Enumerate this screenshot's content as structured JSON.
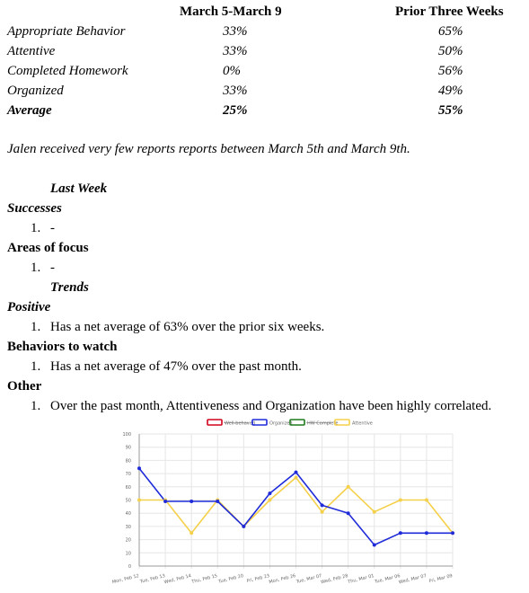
{
  "table": {
    "headers": [
      "March 5-March 9",
      "Prior Three Weeks"
    ],
    "rows": [
      {
        "label": "Appropriate Behavior",
        "current": "33%",
        "prior": "65%"
      },
      {
        "label": "Attentive",
        "current": "33%",
        "prior": "50%"
      },
      {
        "label": "Completed Homework",
        "current": "0%",
        "prior": "56%"
      },
      {
        "label": "Organized",
        "current": "33%",
        "prior": "49%"
      },
      {
        "label": "Average",
        "current": "25%",
        "prior": "55%"
      }
    ]
  },
  "note": "Jalen received very few reports reports between March 5th and March 9th.",
  "last_week": {
    "title": "Last Week",
    "successes": {
      "heading": "Successes",
      "items": [
        "-"
      ]
    },
    "focus": {
      "heading": "Areas of focus",
      "items": [
        "-"
      ]
    }
  },
  "trends": {
    "title": "Trends",
    "positive": {
      "heading": "Positive",
      "items": [
        "Has a net average of 63% over the prior six weeks."
      ]
    },
    "watch": {
      "heading": "Behaviors to watch",
      "items": [
        "Has a net average of 47% over the past month."
      ]
    },
    "other": {
      "heading": "Other",
      "items": [
        "Over the past month, Attentiveness and Organization have been highly correlated."
      ]
    }
  },
  "list_number": "1.",
  "chart_data": {
    "type": "line",
    "ylim": [
      0,
      100
    ],
    "yticks": [
      0,
      10,
      20,
      30,
      40,
      50,
      60,
      70,
      80,
      90,
      100
    ],
    "categories": [
      "Mon, Feb 12",
      "Tue, Feb 13",
      "Wed, Feb 14",
      "Thu, Feb 15",
      "Tue, Feb 20",
      "Fri, Feb 23",
      "Mon, Feb 26",
      "Tue, Mar 07",
      "Wed, Feb 28",
      "Thu, Mar 01",
      "Tue, Mar 06",
      "Wed, Mar 07",
      "Fri, Mar 09"
    ],
    "legend": [
      {
        "name": "Well-behaved",
        "color": "#d0021b",
        "hidden": true
      },
      {
        "name": "Organized",
        "color": "#1f2bd9",
        "hidden": false
      },
      {
        "name": "HW Complete",
        "color": "#1f7a1f",
        "hidden": true
      },
      {
        "name": "Attentive",
        "color": "#f5d04a",
        "hidden": false
      }
    ],
    "series": [
      {
        "name": "Organized",
        "color": "#1f2bd9",
        "values": [
          74,
          49,
          49,
          49,
          30,
          55,
          71,
          46,
          40,
          16,
          25,
          25,
          25
        ]
      },
      {
        "name": "Attentive",
        "color": "#f5d04a",
        "values": [
          50,
          50,
          25,
          50,
          30,
          50,
          67,
          41,
          60,
          41,
          50,
          50,
          25
        ]
      }
    ]
  }
}
